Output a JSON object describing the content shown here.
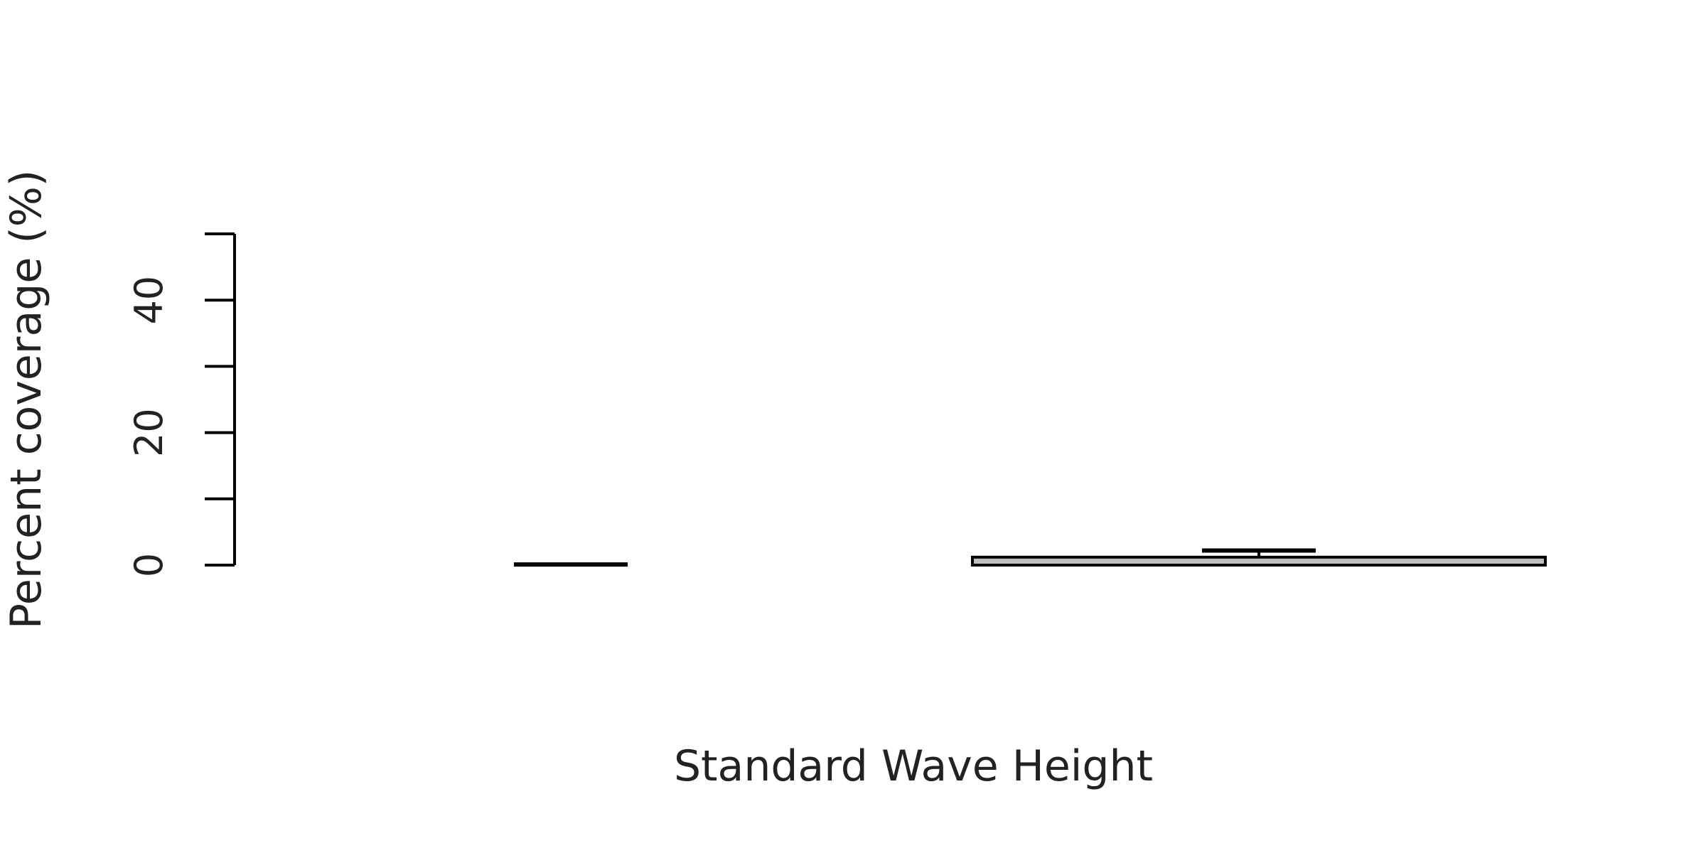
{
  "chart_data": {
    "type": "bar",
    "title": "",
    "xlabel": "Standard Wave Height",
    "ylabel": "Percent coverage (%)",
    "ylim": [
      0,
      50
    ],
    "y_ticks": [
      0,
      20,
      40
    ],
    "y_tick_marks": [
      0,
      10,
      20,
      30,
      40,
      50
    ],
    "categories": [
      "",
      ""
    ],
    "values": [
      0,
      1.2
    ],
    "error_upper": [
      0.1,
      2.2
    ],
    "grid": false,
    "legend": "none",
    "colors": {
      "bar_fill": [
        "#ffffff",
        "#bebebe"
      ],
      "stroke": "#000000"
    }
  }
}
